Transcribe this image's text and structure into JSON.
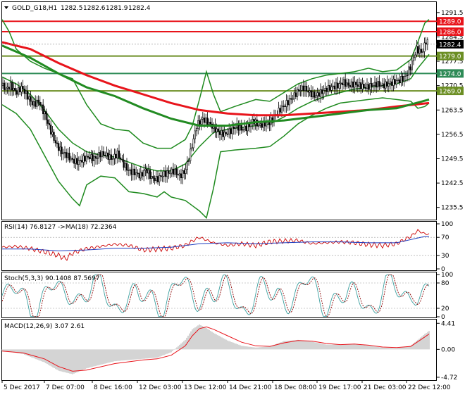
{
  "chart_data": [
    {
      "type": "candlestick",
      "panel": "price",
      "header": {
        "symbol": "GOLD_G18,H1",
        "open": "1282.5",
        "high": "1282.6",
        "low": "1281.9",
        "close": "1282.4"
      },
      "ylim": [
        1232.0,
        1294.5
      ],
      "y_ticks": [
        "1291.5",
        "1284.5",
        "1277.5",
        "1270.5",
        "1263.5",
        "1256.5",
        "1249.5",
        "1242.5",
        "1235.5"
      ],
      "price_tag": {
        "value": 1282.4,
        "label": "1282.4",
        "color": "#000000"
      },
      "levels": [
        {
          "value": 1289.0,
          "label": "1289.0",
          "color": "#e8141b"
        },
        {
          "value": 1286.0,
          "label": "1286.0",
          "color": "#e8141b"
        },
        {
          "value": 1279.0,
          "label": "1279.0",
          "color": "#6b8e23"
        },
        {
          "value": 1274.0,
          "label": "1274.0",
          "color": "#2e8b57"
        },
        {
          "value": 1269.0,
          "label": "1269.0",
          "color": "#6b8e23"
        }
      ],
      "price_path": {
        "x": [
          0,
          6,
          12,
          20,
          28,
          36,
          44,
          52,
          60,
          68,
          76,
          84,
          92,
          100,
          108,
          116,
          124,
          132,
          140,
          148,
          156,
          164,
          172,
          180,
          188,
          196,
          204,
          212,
          220,
          228,
          236,
          244,
          252,
          260,
          268,
          276,
          284,
          292,
          300,
          308,
          316,
          324,
          332,
          340,
          348,
          356,
          364,
          372,
          380,
          388,
          396,
          404,
          412,
          420,
          428,
          436,
          444,
          452,
          460,
          468,
          476,
          484,
          492,
          500,
          508,
          516,
          524,
          532,
          540,
          548,
          556,
          564,
          572,
          580,
          588,
          596,
          602,
          606
        ],
        "y": [
          1270.5,
          1269.5,
          1270.5,
          1268.5,
          1270.0,
          1267.5,
          1265.0,
          1266.0,
          1262.5,
          1258.0,
          1254.0,
          1251.5,
          1250.5,
          1249.0,
          1248.5,
          1249.5,
          1250.0,
          1249.5,
          1251.0,
          1250.5,
          1249.5,
          1251.0,
          1248.0,
          1246.0,
          1245.5,
          1244.5,
          1246.5,
          1244.0,
          1243.5,
          1245.0,
          1245.5,
          1246.0,
          1244.5,
          1246.0,
          1252.0,
          1259.0,
          1261.0,
          1260.0,
          1258.5,
          1257.0,
          1256.5,
          1257.5,
          1259.0,
          1258.0,
          1258.5,
          1260.5,
          1259.0,
          1259.5,
          1260.0,
          1262.0,
          1264.0,
          1265.5,
          1267.0,
          1269.0,
          1270.0,
          1268.5,
          1267.5,
          1268.5,
          1269.5,
          1270.0,
          1270.5,
          1271.5,
          1270.5,
          1271.0,
          1270.5,
          1270.0,
          1270.5,
          1271.0,
          1270.5,
          1271.0,
          1271.5,
          1272.0,
          1273.0,
          1276.0,
          1281.0,
          1280.0,
          1283.5,
          1282.4
        ]
      },
      "indicators": [
        {
          "name": "slow-ma-red",
          "color": "#e8141b",
          "width": 3,
          "x": [
            0,
            40,
            80,
            120,
            160,
            200,
            240,
            280,
            320,
            360,
            400,
            440,
            480,
            520,
            560,
            606
          ],
          "y": [
            1283.0,
            1281.0,
            1277.0,
            1273.5,
            1270.5,
            1268.0,
            1265.5,
            1263.5,
            1262.5,
            1262.0,
            1262.0,
            1262.5,
            1263.0,
            1263.5,
            1264.5,
            1265.5
          ]
        },
        {
          "name": "slow-ma-green",
          "color": "#228b22",
          "width": 3,
          "x": [
            0,
            40,
            80,
            120,
            160,
            200,
            240,
            280,
            320,
            360,
            400,
            440,
            480,
            520,
            560,
            606
          ],
          "y": [
            1282.0,
            1278.5,
            1274.0,
            1270.0,
            1267.5,
            1264.0,
            1261.0,
            1259.0,
            1259.0,
            1260.0,
            1260.5,
            1261.5,
            1262.5,
            1263.5,
            1264.0,
            1266.5
          ]
        },
        {
          "name": "bollinger-upper",
          "color": "#1e8a1e",
          "width": 1.5,
          "x": [
            0,
            10,
            20,
            40,
            60,
            80,
            100,
            120,
            140,
            160,
            180,
            200,
            220,
            240,
            260,
            270,
            280,
            290,
            300,
            310,
            330,
            360,
            380,
            400,
            420,
            440,
            460,
            480,
            500,
            520,
            540,
            560,
            580,
            590,
            600,
            606
          ],
          "y": [
            1289.5,
            1286.0,
            1281.0,
            1277.5,
            1275.5,
            1274.0,
            1272.5,
            1265.0,
            1259.5,
            1258.0,
            1257.5,
            1254.0,
            1252.5,
            1252.5,
            1255.0,
            1259.0,
            1266.5,
            1274.5,
            1268.0,
            1263.0,
            1264.5,
            1266.5,
            1266.0,
            1268.5,
            1271.0,
            1272.5,
            1273.5,
            1274.0,
            1274.5,
            1275.5,
            1274.5,
            1275.0,
            1278.0,
            1283.0,
            1288.5,
            1289.5
          ]
        },
        {
          "name": "bollinger-middle",
          "color": "#1e8a1e",
          "width": 1.5,
          "x": [
            0,
            20,
            40,
            60,
            80,
            100,
            120,
            140,
            160,
            180,
            200,
            220,
            240,
            260,
            280,
            300,
            320,
            340,
            360,
            380,
            400,
            420,
            440,
            460,
            480,
            500,
            520,
            540,
            560,
            580,
            590,
            600,
            606
          ],
          "y": [
            1273.0,
            1271.0,
            1268.0,
            1263.5,
            1258.0,
            1254.0,
            1251.5,
            1250.5,
            1250.0,
            1248.5,
            1247.0,
            1246.0,
            1246.0,
            1248.0,
            1253.0,
            1257.0,
            1258.0,
            1258.5,
            1259.0,
            1259.5,
            1261.5,
            1264.0,
            1266.0,
            1267.5,
            1268.5,
            1269.5,
            1270.0,
            1270.5,
            1271.0,
            1272.5,
            1275.5,
            1278.0,
            1279.5
          ]
        },
        {
          "name": "bollinger-lower",
          "color": "#1e8a1e",
          "width": 1.5,
          "x": [
            0,
            20,
            40,
            60,
            80,
            100,
            110,
            120,
            140,
            160,
            180,
            200,
            220,
            230,
            240,
            260,
            270,
            280,
            290,
            300,
            310,
            330,
            360,
            380,
            400,
            420,
            440,
            460,
            480,
            500,
            520,
            540,
            560,
            580,
            590,
            600,
            606
          ],
          "y": [
            1265.0,
            1262.5,
            1258.0,
            1250.5,
            1243.0,
            1238.0,
            1236.0,
            1242.0,
            1244.5,
            1244.0,
            1240.0,
            1239.5,
            1238.5,
            1240.0,
            1238.5,
            1237.5,
            1236.0,
            1234.5,
            1232.5,
            1241.0,
            1251.5,
            1252.0,
            1252.5,
            1253.0,
            1256.0,
            1259.5,
            1262.0,
            1264.0,
            1265.5,
            1266.0,
            1266.5,
            1267.0,
            1266.5,
            1266.0,
            1264.0,
            1264.5,
            1265.5
          ]
        }
      ]
    },
    {
      "type": "line",
      "panel": "rsi",
      "header": "RSI(14) 76.8127  ->MA(18) 72.2364",
      "ylim": [
        0,
        100
      ],
      "y_ticks": [
        "100",
        "70",
        "30",
        "0"
      ],
      "series": [
        {
          "color": "#cc0000",
          "x": [
            0,
            20,
            40,
            60,
            80,
            90,
            100,
            120,
            140,
            160,
            180,
            200,
            220,
            240,
            260,
            270,
            280,
            300,
            320,
            340,
            360,
            380,
            400,
            420,
            440,
            460,
            480,
            500,
            520,
            540,
            560,
            580,
            590,
            600,
            606
          ],
          "y": [
            48,
            50,
            45,
            38,
            30,
            22,
            35,
            45,
            50,
            55,
            52,
            42,
            44,
            46,
            52,
            62,
            70,
            58,
            52,
            56,
            52,
            60,
            62,
            63,
            56,
            58,
            60,
            58,
            54,
            52,
            56,
            72,
            85,
            78,
            77
          ]
        },
        {
          "color": "#1f3fbf",
          "x": [
            0,
            40,
            80,
            120,
            160,
            200,
            240,
            280,
            320,
            360,
            400,
            440,
            480,
            520,
            560,
            600,
            606
          ],
          "y": [
            44,
            44,
            40,
            42,
            46,
            46,
            48,
            56,
            58,
            56,
            58,
            60,
            60,
            58,
            58,
            72,
            72
          ]
        }
      ]
    },
    {
      "type": "line",
      "panel": "stochastic",
      "header": "Stoch(5,3,3) 90.1408 87.5697",
      "ylim": [
        0,
        100
      ],
      "y_ticks": [
        "100",
        "80",
        "20",
        "0"
      ],
      "series": [
        {
          "color": "#3ca0a0"
        },
        {
          "color": "#8b0000",
          "dashed": true
        }
      ]
    },
    {
      "type": "bar",
      "panel": "macd",
      "header": "MACD(12,26,9) 3.07 2.61",
      "ylim": [
        -5.2,
        4.8
      ],
      "y_ticks": [
        "4.41",
        "0.00",
        "-4.72"
      ],
      "histogram": {
        "x": [
          0,
          30,
          60,
          80,
          100,
          120,
          160,
          200,
          220,
          240,
          260,
          270,
          280,
          290,
          300,
          320,
          340,
          360,
          380,
          400,
          420,
          440,
          460,
          480,
          500,
          520,
          540,
          560,
          580,
          600,
          606
        ],
        "y": [
          -0.2,
          -0.8,
          -2.2,
          -3.6,
          -4.2,
          -3.2,
          -2.0,
          -1.6,
          -1.4,
          -0.5,
          1.6,
          3.4,
          4.2,
          3.6,
          2.8,
          1.5,
          0.6,
          0.3,
          0.5,
          1.4,
          1.6,
          1.3,
          0.8,
          0.8,
          0.9,
          0.6,
          0.3,
          0.2,
          0.6,
          2.6,
          3.1
        ]
      },
      "signal": {
        "color": "#e8141b",
        "x": [
          0,
          30,
          60,
          80,
          100,
          120,
          160,
          200,
          220,
          240,
          260,
          270,
          280,
          290,
          300,
          320,
          340,
          360,
          380,
          400,
          420,
          440,
          460,
          480,
          500,
          520,
          540,
          560,
          580,
          600,
          606
        ],
        "y": [
          -0.3,
          -0.6,
          -1.6,
          -2.9,
          -3.7,
          -3.5,
          -2.4,
          -1.8,
          -1.6,
          -1.0,
          0.6,
          2.3,
          3.5,
          3.8,
          3.4,
          2.3,
          1.2,
          0.6,
          0.5,
          1.1,
          1.5,
          1.4,
          1.0,
          0.8,
          0.9,
          0.7,
          0.4,
          0.3,
          0.5,
          2.1,
          2.6
        ]
      }
    }
  ],
  "x_axis": {
    "labels": [
      "5 Dec 2017",
      "7 Dec 07:00",
      "8 Dec 16:00",
      "12 Dec 03:00",
      "13 Dec 12:00",
      "14 Dec 21:00",
      "18 Dec 08:00",
      "19 Dec 17:00",
      "21 Dec 03:00",
      "22 Dec 12:00"
    ],
    "label_anchors": [
      0,
      60,
      128,
      192,
      256,
      320,
      384,
      447,
      511,
      574
    ]
  },
  "colors": {
    "background": "#ffffff",
    "frame": "#000000",
    "bull": "#000000",
    "bear": "#000000"
  }
}
